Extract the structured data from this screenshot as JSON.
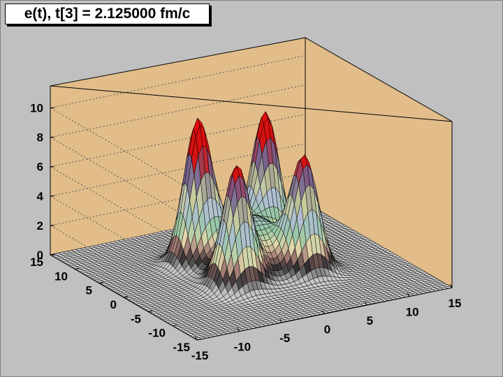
{
  "title": "e(t), t[3] = 2.125000 fm/c",
  "chart_data": {
    "type": "surface",
    "title": "e(t), t[3] = 2.125000 fm/c",
    "x_range": [
      -15,
      15
    ],
    "y_range": [
      -15,
      15
    ],
    "z_range": [
      0,
      11.5
    ],
    "x_ticks": [
      "-15",
      "-10",
      "-5",
      "0",
      "5",
      "10",
      "15"
    ],
    "y_ticks": [
      "-15",
      "-10",
      "-5",
      "0",
      "5",
      "10",
      "15"
    ],
    "z_ticks": [
      "0",
      "2",
      "4",
      "6",
      "8",
      "10"
    ],
    "z_gridlines": true,
    "peaks": [
      {
        "x": -4,
        "y": -4,
        "z": 7.6
      },
      {
        "x": -4,
        "y": 4,
        "z": 9.3
      },
      {
        "x": 4,
        "y": -4,
        "z": 7.4
      },
      {
        "x": 4,
        "y": 4,
        "z": 8.8
      }
    ],
    "colors": {
      "back_wall": "#e2bd8a",
      "floor": "#d2d2d2",
      "mesh": "#000000",
      "peak_top": "#e00000"
    }
  }
}
